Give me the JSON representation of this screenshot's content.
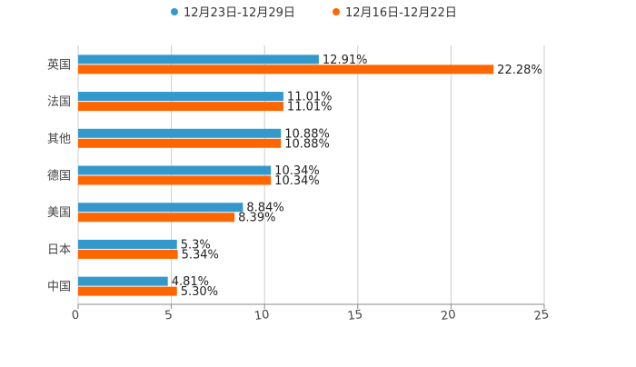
{
  "chart_data": {
    "type": "bar",
    "orientation": "horizontal",
    "title": "",
    "xlabel": "",
    "ylabel": "",
    "xlim": [
      0,
      25
    ],
    "xticks": [
      "0",
      "5",
      "10",
      "15",
      "20",
      "25"
    ],
    "xtick_values": [
      0,
      5,
      10,
      15,
      20,
      25
    ],
    "grid": true,
    "legend_position": "top-center",
    "categories": [
      "英国",
      "法国",
      "其他",
      "德国",
      "美国",
      "日本",
      "中国"
    ],
    "series": [
      {
        "name": "12月23日-12月29日",
        "color": "#3399cc",
        "values": [
          12.91,
          11.01,
          10.88,
          10.34,
          8.84,
          5.3,
          4.81
        ],
        "labels": [
          "12.91%",
          "11.01%",
          "10.88%",
          "10.34%",
          "8.84%",
          "5.3%",
          "4.81%"
        ]
      },
      {
        "name": "12月16日-12月22日",
        "color": "#ff6600",
        "values": [
          22.28,
          11.01,
          10.88,
          10.34,
          8.39,
          5.34,
          5.3
        ],
        "labels": [
          "22.28%",
          "11.01%",
          "10.88%",
          "10.34%",
          "8.39%",
          "5.34%",
          "5.30%"
        ]
      }
    ]
  }
}
